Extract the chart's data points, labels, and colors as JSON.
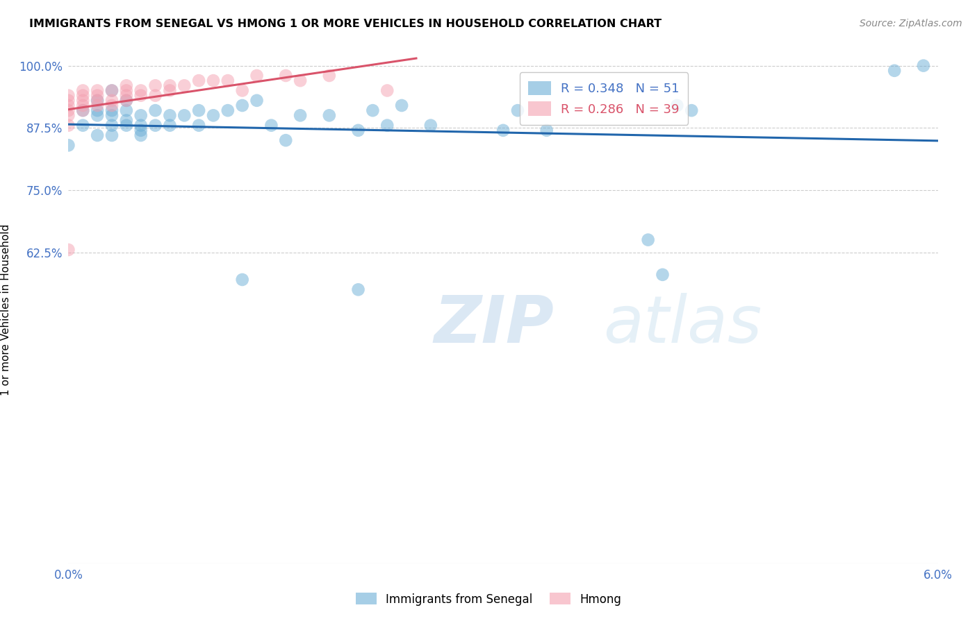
{
  "title": "IMMIGRANTS FROM SENEGAL VS HMONG 1 OR MORE VEHICLES IN HOUSEHOLD CORRELATION CHART",
  "source": "Source: ZipAtlas.com",
  "ylabel": "1 or more Vehicles in Household",
  "x_min": 0.0,
  "x_max": 0.06,
  "y_min": 0.0,
  "y_max": 1.0,
  "x_ticks": [
    0.0,
    0.01,
    0.02,
    0.03,
    0.04,
    0.05,
    0.06
  ],
  "x_tick_labels": [
    "0.0%",
    "",
    "",
    "",
    "",
    "",
    "6.0%"
  ],
  "y_ticks": [
    0.625,
    0.75,
    0.875,
    1.0
  ],
  "y_tick_labels": [
    "62.5%",
    "75.0%",
    "87.5%",
    "100.0%"
  ],
  "senegal_R": 0.348,
  "senegal_N": 51,
  "hmong_R": 0.286,
  "hmong_N": 39,
  "senegal_color": "#6baed6",
  "hmong_color": "#f4a0b0",
  "senegal_line_color": "#2166ac",
  "hmong_line_color": "#d9536a",
  "watermark_zip": "ZIP",
  "watermark_atlas": "atlas",
  "senegal_x": [
    0.0,
    0.001,
    0.001,
    0.002,
    0.002,
    0.002,
    0.003,
    0.003,
    0.003,
    0.003,
    0.004,
    0.004,
    0.004,
    0.004,
    0.005,
    0.005,
    0.005,
    0.006,
    0.006,
    0.007,
    0.007,
    0.008,
    0.009,
    0.009,
    0.01,
    0.011,
    0.012,
    0.013,
    0.014,
    0.015,
    0.016,
    0.018,
    0.02,
    0.021,
    0.022,
    0.023,
    0.025,
    0.03,
    0.031,
    0.033,
    0.04,
    0.041,
    0.042,
    0.043,
    0.057,
    0.059,
    0.002,
    0.003,
    0.005,
    0.012,
    0.02
  ],
  "senegal_y": [
    0.84,
    0.88,
    0.91,
    0.9,
    0.91,
    0.93,
    0.88,
    0.9,
    0.91,
    0.95,
    0.88,
    0.89,
    0.91,
    0.93,
    0.87,
    0.88,
    0.9,
    0.88,
    0.91,
    0.88,
    0.9,
    0.9,
    0.88,
    0.91,
    0.9,
    0.91,
    0.92,
    0.93,
    0.88,
    0.85,
    0.9,
    0.9,
    0.87,
    0.91,
    0.88,
    0.92,
    0.88,
    0.87,
    0.91,
    0.87,
    0.65,
    0.58,
    0.92,
    0.91,
    0.99,
    1.0,
    0.86,
    0.86,
    0.86,
    0.57,
    0.55
  ],
  "hmong_x": [
    0.0,
    0.0,
    0.0,
    0.0,
    0.0,
    0.0,
    0.001,
    0.001,
    0.001,
    0.001,
    0.001,
    0.002,
    0.002,
    0.002,
    0.002,
    0.003,
    0.003,
    0.003,
    0.004,
    0.004,
    0.004,
    0.004,
    0.005,
    0.005,
    0.006,
    0.006,
    0.007,
    0.007,
    0.008,
    0.009,
    0.01,
    0.011,
    0.012,
    0.013,
    0.015,
    0.016,
    0.018,
    0.022,
    0.0
  ],
  "hmong_y": [
    0.88,
    0.9,
    0.91,
    0.92,
    0.93,
    0.94,
    0.91,
    0.92,
    0.93,
    0.94,
    0.95,
    0.92,
    0.93,
    0.94,
    0.95,
    0.92,
    0.93,
    0.95,
    0.93,
    0.94,
    0.95,
    0.96,
    0.94,
    0.95,
    0.94,
    0.96,
    0.95,
    0.96,
    0.96,
    0.97,
    0.97,
    0.97,
    0.95,
    0.98,
    0.98,
    0.97,
    0.98,
    0.95,
    0.63
  ]
}
